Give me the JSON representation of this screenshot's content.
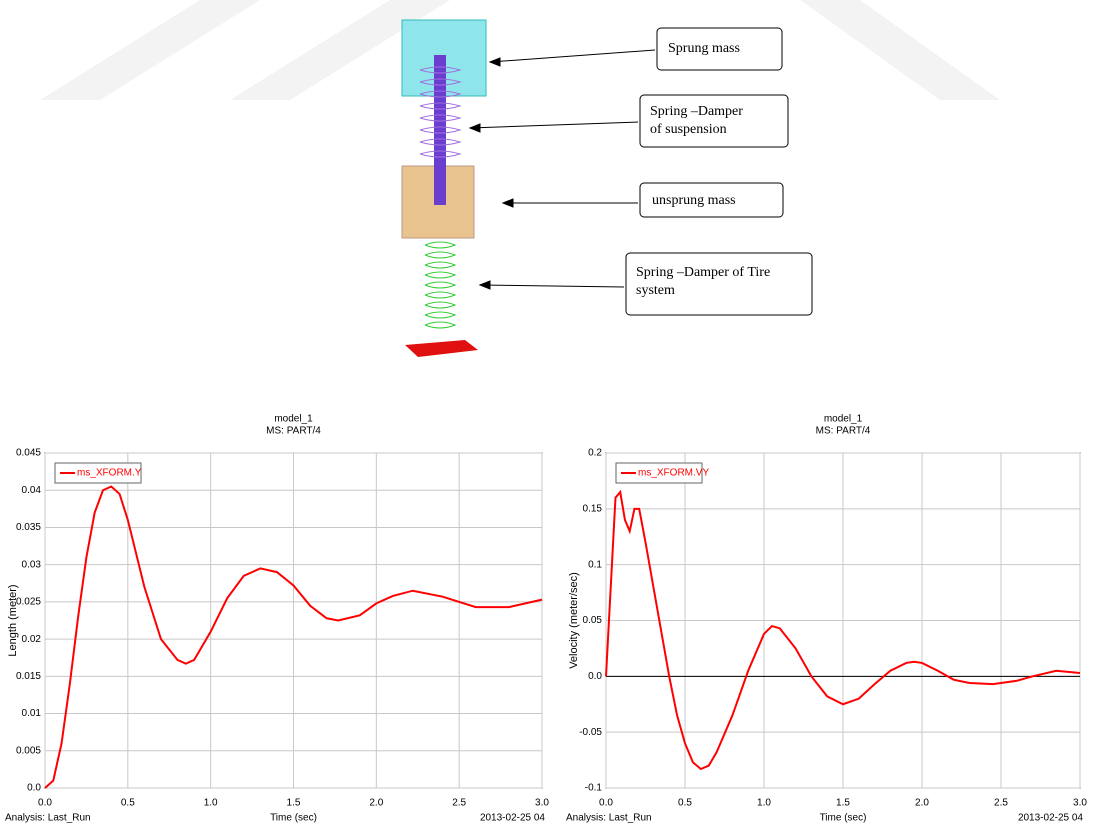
{
  "diagram": {
    "labels": [
      [
        "Sprung mass"
      ],
      [
        "Spring –Damper",
        "of suspension"
      ],
      [
        "unsprung mass"
      ],
      [
        "Spring –Damper of Tire",
        "system"
      ]
    ]
  },
  "chart_data": [
    {
      "type": "line",
      "title": "model_1",
      "subtitle": "MS: PART/4",
      "x_label": "Time (sec)",
      "y_label": "Length (meter)",
      "footer_left": "Analysis:  Last_Run",
      "footer_right": "2013-02-25 04",
      "x": [
        0,
        0.05,
        0.1,
        0.15,
        0.2,
        0.25,
        0.3,
        0.35,
        0.4,
        0.45,
        0.5,
        0.6,
        0.7,
        0.8,
        0.85,
        0.9,
        1.0,
        1.1,
        1.2,
        1.3,
        1.4,
        1.5,
        1.6,
        1.7,
        1.77,
        1.9,
        2.0,
        2.1,
        2.22,
        2.4,
        2.6,
        2.8,
        3.0
      ],
      "series": [
        {
          "name": "ms_XFORM.Y",
          "color": "#ff0000",
          "values": [
            0,
            0.001,
            0.006,
            0.014,
            0.023,
            0.031,
            0.037,
            0.04,
            0.0405,
            0.0395,
            0.036,
            0.027,
            0.02,
            0.0172,
            0.0167,
            0.0172,
            0.021,
            0.0255,
            0.0285,
            0.0295,
            0.029,
            0.0272,
            0.0245,
            0.0228,
            0.0225,
            0.0232,
            0.0248,
            0.0258,
            0.0265,
            0.0257,
            0.0243,
            0.0243,
            0.0253
          ]
        }
      ],
      "xlim": [
        0,
        3
      ],
      "ylim": [
        0,
        0.045
      ],
      "xticks": [
        {
          "value": 0,
          "label": "0.0"
        },
        0.5,
        {
          "value": 1,
          "label": "1.0"
        },
        1.5,
        {
          "value": 2,
          "label": "2.0"
        },
        2.5,
        {
          "value": 3,
          "label": "3.0"
        }
      ],
      "yticks": [
        {
          "value": 0,
          "label": "0.0"
        },
        0.005,
        0.01,
        0.015,
        0.02,
        0.025,
        0.03,
        0.035,
        0.04,
        0.045
      ],
      "grid": true,
      "zero_line": false,
      "legend": "upper left"
    },
    {
      "type": "line",
      "title": "model_1",
      "subtitle": "MS: PART/4",
      "x_label": "Time (sec)",
      "y_label": "Velocity (meter/sec)",
      "footer_left": "Analysis:  Last_Run",
      "footer_right": "2013-02-25 04",
      "x": [
        0,
        0.03,
        0.06,
        0.09,
        0.12,
        0.15,
        0.18,
        0.21,
        0.25,
        0.3,
        0.35,
        0.4,
        0.45,
        0.5,
        0.55,
        0.6,
        0.65,
        0.7,
        0.8,
        0.9,
        1.0,
        1.05,
        1.1,
        1.2,
        1.3,
        1.4,
        1.5,
        1.6,
        1.7,
        1.8,
        1.9,
        1.95,
        2.0,
        2.1,
        2.2,
        2.3,
        2.45,
        2.6,
        2.7,
        2.85,
        3.0
      ],
      "series": [
        {
          "name": "ms_XFORM.VY",
          "color": "#ff0000",
          "values": [
            0,
            0.08,
            0.16,
            0.165,
            0.14,
            0.13,
            0.15,
            0.15,
            0.12,
            0.08,
            0.04,
            0,
            -0.035,
            -0.06,
            -0.077,
            -0.083,
            -0.08,
            -0.068,
            -0.035,
            0.005,
            0.038,
            0.045,
            0.043,
            0.025,
            0,
            -0.018,
            -0.025,
            -0.02,
            -0.007,
            0.005,
            0.012,
            0.013,
            0.012,
            0.005,
            -0.003,
            -0.006,
            -0.007,
            -0.004,
            0,
            0.005,
            0.003
          ]
        }
      ],
      "xlim": [
        0,
        3
      ],
      "ylim": [
        -0.1,
        0.2
      ],
      "xticks": [
        {
          "value": 0,
          "label": "0.0"
        },
        0.5,
        {
          "value": 1,
          "label": "1.0"
        },
        1.5,
        {
          "value": 2,
          "label": "2.0"
        },
        2.5,
        {
          "value": 3,
          "label": "3.0"
        }
      ],
      "yticks": [
        -0.1,
        -0.05,
        {
          "value": 0,
          "label": "0.0"
        },
        0.05,
        0.1,
        0.15,
        0.2
      ],
      "grid": true,
      "zero_line": true,
      "legend": "upper left"
    }
  ]
}
